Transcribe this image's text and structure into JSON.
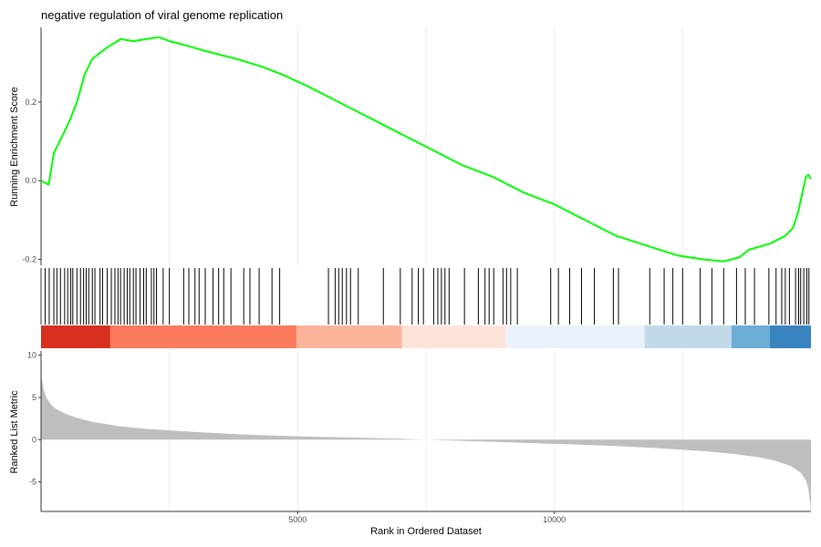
{
  "chart_data": [
    {
      "type": "line",
      "panel": "running-enrichment-score",
      "title": "negative regulation of viral genome replication",
      "xlabel": "",
      "ylabel": "Running Enrichment Score",
      "xlim": [
        1,
        15000
      ],
      "ylim": [
        -0.215,
        0.39
      ],
      "y_ticks": [
        -0.2,
        0.0,
        0.2
      ],
      "y_tick_labels": [
        "-0.2",
        "0.0",
        "0.2"
      ],
      "grid": "vertical major lines only",
      "line_color": "#00ff00",
      "series": [
        {
          "x": [
            1,
            150,
            250,
            400,
            550,
            700,
            850,
            1000,
            1100,
            1300,
            1550,
            1800,
            2050,
            2300,
            2500,
            2800,
            3200,
            3800,
            4300,
            4700,
            5200,
            5800,
            6400,
            7000,
            7600,
            8200,
            8800,
            9400,
            10000,
            10600,
            11200,
            11800,
            12400,
            12900,
            13300,
            13600,
            13800,
            14200,
            14500,
            14650,
            14750,
            14850,
            14900,
            14950,
            15000
          ],
          "y": [
            0.0,
            -0.01,
            0.07,
            0.11,
            0.15,
            0.2,
            0.27,
            0.31,
            0.32,
            0.34,
            0.36,
            0.355,
            0.36,
            0.365,
            0.355,
            0.345,
            0.33,
            0.31,
            0.29,
            0.27,
            0.24,
            0.2,
            0.16,
            0.12,
            0.08,
            0.04,
            0.01,
            -0.03,
            -0.06,
            -0.1,
            -0.14,
            -0.165,
            -0.19,
            -0.2,
            -0.205,
            -0.195,
            -0.175,
            -0.16,
            -0.14,
            -0.12,
            -0.08,
            -0.02,
            0.01,
            0.015,
            0.005
          ]
        }
      ]
    },
    {
      "type": "barcode",
      "panel": "gene-hit-positions",
      "xlim": [
        1,
        15000
      ],
      "hits": [
        80,
        160,
        250,
        310,
        380,
        460,
        520,
        580,
        620,
        700,
        770,
        830,
        880,
        930,
        1000,
        1050,
        1150,
        1200,
        1290,
        1370,
        1440,
        1500,
        1550,
        1620,
        1680,
        1730,
        1800,
        1850,
        1930,
        2000,
        2050,
        2150,
        2200,
        2250,
        2380,
        2500,
        2780,
        2880,
        3000,
        3080,
        3200,
        3350,
        3460,
        3560,
        3700,
        3950,
        4070,
        4250,
        4500,
        4650,
        5600,
        5730,
        5800,
        5870,
        5950,
        6030,
        6180,
        6670,
        7000,
        7230,
        7350,
        7450,
        7650,
        7730,
        7800,
        7870,
        7950,
        8250,
        8520,
        8650,
        8730,
        8820,
        9000,
        9070,
        9150,
        9280,
        9930,
        10080,
        10300,
        10530,
        10780,
        11150,
        11250,
        11860,
        12140,
        12310,
        12500,
        12840,
        13070,
        13300,
        13550,
        13720,
        13900,
        14180,
        14320,
        14430,
        14500,
        14580,
        14700,
        14760,
        14800,
        14860,
        14920,
        14960
      ]
    },
    {
      "type": "heatmap",
      "panel": "rank-position-color-bands",
      "xlim": [
        1,
        15000
      ],
      "bands": [
        {
          "from": 1,
          "to": 1350,
          "color": "#d7301f"
        },
        {
          "from": 1350,
          "to": 4980,
          "color": "#fc7a5c"
        },
        {
          "from": 4980,
          "to": 7030,
          "color": "#fcb39c"
        },
        {
          "from": 7030,
          "to": 9050,
          "color": "#fde4d9"
        },
        {
          "from": 9050,
          "to": 11760,
          "color": "#eaf1fb"
        },
        {
          "from": 11760,
          "to": 13450,
          "color": "#c2d9e8"
        },
        {
          "from": 13450,
          "to": 14200,
          "color": "#6baed6"
        },
        {
          "from": 14200,
          "to": 15000,
          "color": "#3a84c0"
        }
      ]
    },
    {
      "type": "area",
      "panel": "ranked-list-metric",
      "xlabel": "Rank in Ordered Dataset",
      "ylabel": "Ranked List Metric",
      "xlim": [
        1,
        15000
      ],
      "ylim": [
        -8.5,
        10.5
      ],
      "x_ticks": [
        5000,
        10000
      ],
      "x_tick_labels": [
        "5000",
        "10000"
      ],
      "y_ticks": [
        -5,
        0,
        5,
        10
      ],
      "y_tick_labels": [
        "-5",
        "0",
        "5",
        "10"
      ],
      "grid": "vertical major lines only",
      "fill_color": "#bebebe",
      "x": [
        1,
        20,
        50,
        100,
        200,
        300,
        500,
        700,
        1000,
        1500,
        2000,
        3000,
        4000,
        5000,
        6000,
        7000,
        7500,
        8000,
        9000,
        10000,
        11000,
        12000,
        12500,
        13000,
        13500,
        14000,
        14300,
        14600,
        14800,
        14900,
        14950,
        15000
      ],
      "y": [
        7.8,
        7.0,
        6.0,
        5.0,
        4.1,
        3.6,
        3.0,
        2.6,
        2.1,
        1.6,
        1.3,
        0.9,
        0.6,
        0.4,
        0.25,
        0.1,
        0.0,
        -0.1,
        -0.3,
        -0.5,
        -0.7,
        -1.0,
        -1.2,
        -1.4,
        -1.7,
        -2.1,
        -2.5,
        -3.1,
        -3.9,
        -4.8,
        -5.8,
        -8.5
      ]
    }
  ]
}
